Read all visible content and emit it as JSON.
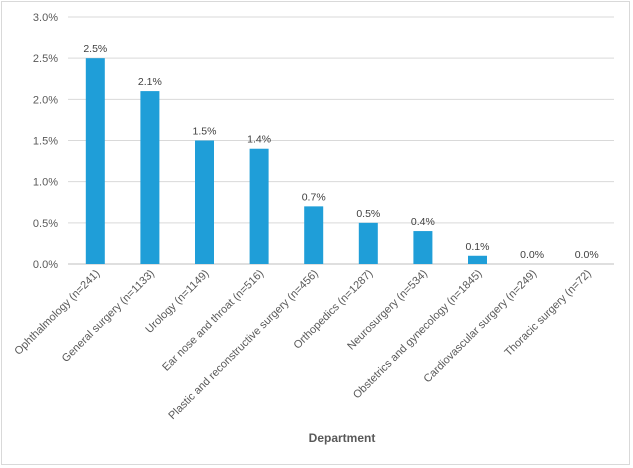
{
  "chart_data": {
    "type": "bar",
    "title": "",
    "xlabel": "Department",
    "ylabel": "",
    "ylim": [
      0,
      3.0
    ],
    "y_ticks": [
      "0.0%",
      "0.5%",
      "1.0%",
      "1.5%",
      "2.0%",
      "2.5%",
      "3.0%"
    ],
    "y_tick_values": [
      0,
      0.5,
      1.0,
      1.5,
      2.0,
      2.5,
      3.0
    ],
    "grid": true,
    "bar_color": "#1f9ed8",
    "categories": [
      "Ophthalmology (n=241)",
      "General surgery (n=1133)",
      "Urology (n=1149)",
      "Ear nose and throat (n=516)",
      "Plastic and reconstructive surgery (n=456)",
      "Orthopedics (n=1287)",
      "Neurosurgery (n=534)",
      "Obstetrics and gynecology (n=1845)",
      "Cardiovascular surgery (n=249)",
      "Thoracic surgery (n=72)"
    ],
    "values": [
      2.5,
      2.1,
      1.5,
      1.4,
      0.7,
      0.5,
      0.4,
      0.1,
      0.0,
      0.0
    ],
    "data_labels": [
      "2.5%",
      "2.1%",
      "1.5%",
      "1.4%",
      "0.7%",
      "0.5%",
      "0.4%",
      "0.1%",
      "0.0%",
      "0.0%"
    ]
  }
}
